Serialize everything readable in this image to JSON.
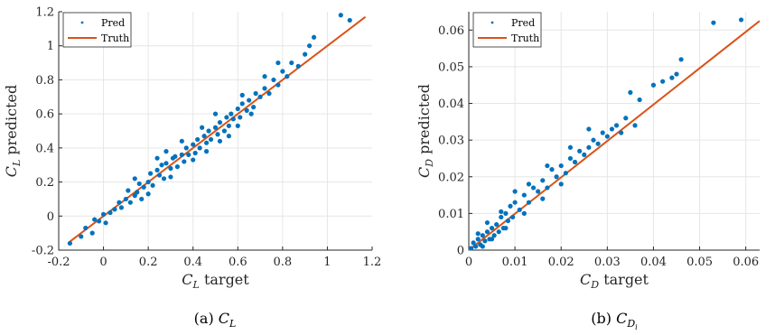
{
  "chart_data": [
    {
      "type": "scatter",
      "x_label": {
        "base": "C",
        "sub": "L",
        "rest": " target"
      },
      "y_label": {
        "base": "C",
        "sub": "L",
        "rest": " predicted"
      },
      "xlim": [
        -0.2,
        1.2
      ],
      "ylim": [
        -0.2,
        1.2
      ],
      "xticks": [
        -0.2,
        0,
        0.2,
        0.4,
        0.6,
        0.8,
        1,
        1.2
      ],
      "xtick_labels": [
        "-0.2",
        "0",
        "0.2",
        "0.4",
        "0.6",
        "0.8",
        "1",
        "1.2"
      ],
      "yticks": [
        -0.2,
        0,
        0.2,
        0.4,
        0.6,
        0.8,
        1,
        1.2
      ],
      "ytick_labels": [
        "-0.2",
        "0",
        "0.2",
        "0.4",
        "0.6",
        "0.8",
        "1",
        "1.2"
      ],
      "grid": true,
      "legend_position": "top-left",
      "legend": [
        {
          "label": "Pred"
        },
        {
          "label": "Truth"
        }
      ],
      "caption": {
        "prefix": "(a) ",
        "base": "C",
        "sub": "L",
        "subsub": ""
      },
      "truth_line": [
        [
          -0.15,
          -0.15
        ],
        [
          1.17,
          1.17
        ]
      ],
      "pred_points": [
        [
          -0.15,
          -0.16
        ],
        [
          -0.1,
          -0.12
        ],
        [
          -0.08,
          -0.07
        ],
        [
          -0.05,
          -0.1
        ],
        [
          -0.04,
          -0.02
        ],
        [
          -0.02,
          -0.03
        ],
        [
          0,
          0.01
        ],
        [
          0.01,
          -0.04
        ],
        [
          0.03,
          0.02
        ],
        [
          0.05,
          0.04
        ],
        [
          0.07,
          0.08
        ],
        [
          0.08,
          0.05
        ],
        [
          0.1,
          0.1
        ],
        [
          0.11,
          0.15
        ],
        [
          0.12,
          0.08
        ],
        [
          0.14,
          0.12
        ],
        [
          0.15,
          0.14
        ],
        [
          0.16,
          0.19
        ],
        [
          0.17,
          0.1
        ],
        [
          0.18,
          0.17
        ],
        [
          0.2,
          0.2
        ],
        [
          0.21,
          0.25
        ],
        [
          0.22,
          0.18
        ],
        [
          0.24,
          0.27
        ],
        [
          0.25,
          0.24
        ],
        [
          0.26,
          0.3
        ],
        [
          0.27,
          0.22
        ],
        [
          0.28,
          0.31
        ],
        [
          0.3,
          0.28
        ],
        [
          0.31,
          0.34
        ],
        [
          0.32,
          0.35
        ],
        [
          0.33,
          0.29
        ],
        [
          0.35,
          0.36
        ],
        [
          0.36,
          0.32
        ],
        [
          0.37,
          0.4
        ],
        [
          0.38,
          0.36
        ],
        [
          0.4,
          0.42
        ],
        [
          0.41,
          0.37
        ],
        [
          0.42,
          0.45
        ],
        [
          0.43,
          0.4
        ],
        [
          0.45,
          0.47
        ],
        [
          0.46,
          0.43
        ],
        [
          0.47,
          0.5
        ],
        [
          0.48,
          0.45
        ],
        [
          0.5,
          0.52
        ],
        [
          0.51,
          0.48
        ],
        [
          0.52,
          0.55
        ],
        [
          0.54,
          0.5
        ],
        [
          0.55,
          0.58
        ],
        [
          0.56,
          0.53
        ],
        [
          0.57,
          0.6
        ],
        [
          0.58,
          0.57
        ],
        [
          0.6,
          0.63
        ],
        [
          0.61,
          0.58
        ],
        [
          0.62,
          0.66
        ],
        [
          0.64,
          0.62
        ],
        [
          0.65,
          0.68
        ],
        [
          0.67,
          0.64
        ],
        [
          0.68,
          0.72
        ],
        [
          0.7,
          0.7
        ],
        [
          0.72,
          0.75
        ],
        [
          0.74,
          0.72
        ],
        [
          0.76,
          0.8
        ],
        [
          0.78,
          0.77
        ],
        [
          0.8,
          0.85
        ],
        [
          0.82,
          0.82
        ],
        [
          0.84,
          0.9
        ],
        [
          0.87,
          0.88
        ],
        [
          0.9,
          0.95
        ],
        [
          0.92,
          1
        ],
        [
          0.94,
          1.05
        ],
        [
          1.06,
          1.18
        ],
        [
          1.1,
          1.15
        ],
        [
          0.24,
          0.34
        ],
        [
          0.3,
          0.23
        ],
        [
          0.35,
          0.44
        ],
        [
          0.4,
          0.33
        ],
        [
          0.46,
          0.38
        ],
        [
          0.5,
          0.6
        ],
        [
          0.56,
          0.47
        ],
        [
          0.62,
          0.71
        ],
        [
          0.66,
          0.6
        ],
        [
          0.14,
          0.22
        ],
        [
          0.2,
          0.13
        ],
        [
          0.28,
          0.38
        ],
        [
          0.44,
          0.52
        ],
        [
          0.52,
          0.44
        ],
        [
          0.6,
          0.53
        ],
        [
          0.72,
          0.82
        ],
        [
          0.78,
          0.9
        ]
      ]
    },
    {
      "type": "scatter",
      "x_label": {
        "base": "C",
        "sub": "D",
        "rest": " target"
      },
      "y_label": {
        "base": "C",
        "sub": "D",
        "rest": " predicted"
      },
      "xlim": [
        0,
        0.063
      ],
      "ylim": [
        0,
        0.065
      ],
      "xticks": [
        0,
        0.01,
        0.02,
        0.03,
        0.04,
        0.05,
        0.06
      ],
      "xtick_labels": [
        "0",
        "0.01",
        "0.02",
        "0.03",
        "0.04",
        "0.05",
        "0.06"
      ],
      "yticks": [
        0,
        0.01,
        0.02,
        0.03,
        0.04,
        0.05,
        0.06
      ],
      "ytick_labels": [
        "0",
        "0.01",
        "0.02",
        "0.03",
        "0.04",
        "0.05",
        "0.06"
      ],
      "grid": true,
      "legend_position": "top-left",
      "legend": [
        {
          "label": "Pred"
        },
        {
          "label": "Truth"
        }
      ],
      "caption": {
        "prefix": "(b) ",
        "base": "C",
        "sub": "D",
        "subsub": "i"
      },
      "truth_line": [
        [
          0,
          0
        ],
        [
          0.063,
          0.0625
        ]
      ],
      "pred_points": [
        [
          0.0005,
          0.0005
        ],
        [
          0.001,
          0.002
        ],
        [
          0.0015,
          0.001
        ],
        [
          0.002,
          0.003
        ],
        [
          0.0025,
          0.0015
        ],
        [
          0.003,
          0.004
        ],
        [
          0.0035,
          0.0025
        ],
        [
          0.004,
          0.005
        ],
        [
          0.0045,
          0.003
        ],
        [
          0.005,
          0.006
        ],
        [
          0.0055,
          0.004
        ],
        [
          0.006,
          0.007
        ],
        [
          0.0065,
          0.005
        ],
        [
          0.007,
          0.009
        ],
        [
          0.0075,
          0.006
        ],
        [
          0.008,
          0.01
        ],
        [
          0.0085,
          0.008
        ],
        [
          0.009,
          0.012
        ],
        [
          0.0095,
          0.009
        ],
        [
          0.01,
          0.013
        ],
        [
          0.011,
          0.011
        ],
        [
          0.012,
          0.015
        ],
        [
          0.013,
          0.013
        ],
        [
          0.014,
          0.017
        ],
        [
          0.015,
          0.016
        ],
        [
          0.016,
          0.019
        ],
        [
          0.017,
          0.017
        ],
        [
          0.018,
          0.022
        ],
        [
          0.019,
          0.02
        ],
        [
          0.02,
          0.023
        ],
        [
          0.021,
          0.021
        ],
        [
          0.022,
          0.025
        ],
        [
          0.023,
          0.024
        ],
        [
          0.024,
          0.027
        ],
        [
          0.025,
          0.026
        ],
        [
          0.026,
          0.028
        ],
        [
          0.027,
          0.03
        ],
        [
          0.028,
          0.029
        ],
        [
          0.029,
          0.032
        ],
        [
          0.03,
          0.031
        ],
        [
          0.031,
          0.033
        ],
        [
          0.032,
          0.034
        ],
        [
          0.033,
          0.032
        ],
        [
          0.034,
          0.036
        ],
        [
          0.035,
          0.043
        ],
        [
          0.036,
          0.034
        ],
        [
          0.037,
          0.041
        ],
        [
          0.04,
          0.045
        ],
        [
          0.042,
          0.046
        ],
        [
          0.044,
          0.047
        ],
        [
          0.045,
          0.048
        ],
        [
          0.046,
          0.052
        ],
        [
          0.053,
          0.062
        ],
        [
          0.059,
          0.0628
        ],
        [
          0.003,
          0.001
        ],
        [
          0.005,
          0.003
        ],
        [
          0.008,
          0.006
        ],
        [
          0.012,
          0.01
        ],
        [
          0.016,
          0.014
        ],
        [
          0.02,
          0.018
        ],
        [
          0.002,
          0.0045
        ],
        [
          0.004,
          0.0075
        ],
        [
          0.007,
          0.0105
        ],
        [
          0.01,
          0.016
        ],
        [
          0.013,
          0.018
        ],
        [
          0.017,
          0.023
        ],
        [
          0.022,
          0.028
        ],
        [
          0.026,
          0.033
        ]
      ]
    }
  ],
  "colors": {
    "pred": "#0072bd",
    "truth": "#d95319"
  }
}
